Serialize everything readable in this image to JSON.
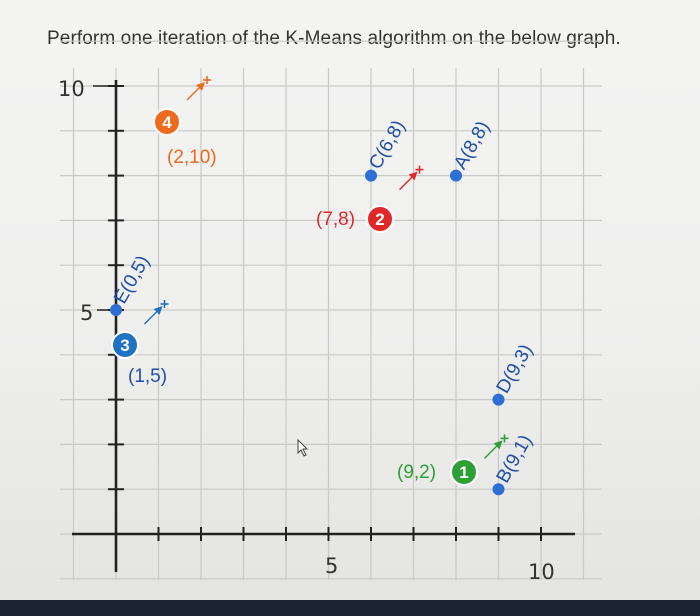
{
  "question": "Perform one iteration of the K-Means algorithm on the below graph.",
  "axes": {
    "x_tick_5": "5",
    "x_tick_10": "10",
    "y_tick_5": "5",
    "y_tick_10": "10"
  },
  "points": [
    {
      "id": "A",
      "label": "A(8,8)",
      "x": 8,
      "y": 8
    },
    {
      "id": "B",
      "label": "B(9,1)",
      "x": 9,
      "y": 1
    },
    {
      "id": "C",
      "label": "C(6,8)",
      "x": 6,
      "y": 8
    },
    {
      "id": "D",
      "label": "D(9,3)",
      "x": 9,
      "y": 3
    },
    {
      "id": "E",
      "label": "E(0,5)",
      "x": 0,
      "y": 5
    }
  ],
  "centroids": [
    {
      "number": "1",
      "label": "(9,2)",
      "x": 9,
      "y": 2,
      "color": "#2e9e36"
    },
    {
      "number": "2",
      "label": "(7,8)",
      "x": 7,
      "y": 8,
      "color": "#e0282a"
    },
    {
      "number": "3",
      "label": "(1,5)",
      "x": 1,
      "y": 5,
      "color": "#1f72c4"
    },
    {
      "number": "4",
      "label": "(2,10)",
      "x": 2,
      "y": 10,
      "color": "#ee6a1c"
    }
  ],
  "colors": {
    "point": "#2e6fd6",
    "grid": "#c9c9c9",
    "axis": "#222222",
    "centroid_3_label": "#1f4fa8"
  }
}
